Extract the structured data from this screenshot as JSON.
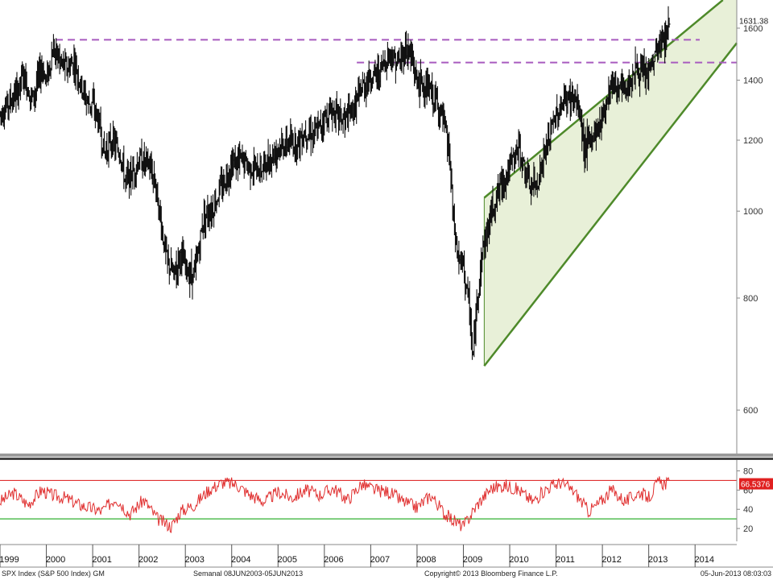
{
  "chart_data": [
    {
      "type": "line",
      "panel": "price",
      "title": "",
      "ylim": [
        540,
        1720
      ],
      "y_scale": "log",
      "y_ticks": [
        600,
        800,
        1000,
        1200,
        1400,
        1600
      ],
      "x_range": [
        1999.0,
        2014.9
      ],
      "last_value_label": "1631.38",
      "last_value": 1631.38,
      "resistance_lines": [
        {
          "from": 2000.2,
          "to": 2014.1,
          "value": 1553,
          "color": "#a85bbf",
          "style": "dashed"
        },
        {
          "from": 2006.7,
          "to": 2014.9,
          "value": 1465,
          "color": "#a85bbf",
          "style": "dashed"
        }
      ],
      "channel": {
        "fill": "#e8f0d8",
        "line_color": "#4e8a2a",
        "upper": {
          "start": [
            2009.45,
            1035
          ],
          "end": [
            2014.6,
            1720
          ]
        },
        "lower": {
          "start": [
            2009.45,
            672
          ],
          "end": [
            2014.9,
            1540
          ]
        }
      },
      "series": [
        {
          "name": "SPX Index",
          "color": "#111111",
          "x": [
            1999.0,
            1999.2,
            1999.4,
            1999.5,
            1999.7,
            1999.9,
            2000.0,
            2000.15,
            2000.3,
            2000.45,
            2000.6,
            2000.75,
            2000.9,
            2001.0,
            2001.15,
            2001.25,
            2001.4,
            2001.6,
            2001.7,
            2001.85,
            2002.0,
            2002.2,
            2002.35,
            2002.5,
            2002.6,
            2002.75,
            2002.9,
            2003.0,
            2003.2,
            2003.4,
            2003.6,
            2003.8,
            2004.0,
            2004.2,
            2004.4,
            2004.6,
            2004.8,
            2005.0,
            2005.2,
            2005.4,
            2005.6,
            2005.8,
            2006.0,
            2006.2,
            2006.4,
            2006.6,
            2006.8,
            2007.0,
            2007.2,
            2007.4,
            2007.6,
            2007.75,
            2007.85,
            2008.0,
            2008.2,
            2008.4,
            2008.55,
            2008.7,
            2008.8,
            2008.9,
            2009.0,
            2009.15,
            2009.2,
            2009.3,
            2009.4,
            2009.5,
            2009.6,
            2009.8,
            2010.0,
            2010.2,
            2010.3,
            2010.45,
            2010.6,
            2010.8,
            2011.0,
            2011.2,
            2011.35,
            2011.5,
            2011.6,
            2011.75,
            2011.9,
            2012.0,
            2012.2,
            2012.35,
            2012.5,
            2012.7,
            2012.85,
            2013.0,
            2013.2,
            2013.35,
            2013.45
          ],
          "values": [
            1285,
            1320,
            1365,
            1420,
            1330,
            1450,
            1400,
            1520,
            1470,
            1440,
            1470,
            1380,
            1320,
            1320,
            1240,
            1160,
            1200,
            1160,
            1080,
            1100,
            1140,
            1130,
            1080,
            950,
            880,
            850,
            900,
            860,
            850,
            990,
            1010,
            1070,
            1130,
            1140,
            1120,
            1110,
            1140,
            1180,
            1190,
            1190,
            1230,
            1220,
            1270,
            1300,
            1260,
            1290,
            1370,
            1410,
            1430,
            1500,
            1460,
            1520,
            1500,
            1400,
            1370,
            1330,
            1270,
            1150,
            950,
            880,
            870,
            760,
            680,
            800,
            900,
            940,
            1000,
            1070,
            1115,
            1180,
            1120,
            1060,
            1080,
            1180,
            1280,
            1330,
            1340,
            1300,
            1180,
            1200,
            1240,
            1280,
            1400,
            1370,
            1360,
            1440,
            1420,
            1420,
            1520,
            1560,
            1640
          ]
        }
      ]
    },
    {
      "type": "line",
      "panel": "rsi",
      "title": "",
      "ylim": [
        10,
        88
      ],
      "y_ticks": [
        20,
        40,
        60,
        80
      ],
      "overbought": 70,
      "oversold": 30,
      "last_value_label": "66.5376",
      "last_value": 66.5376,
      "series": [
        {
          "name": "RSI",
          "color": "#e03030",
          "x": [
            1999.0,
            1999.3,
            1999.6,
            1999.9,
            2000.1,
            2000.4,
            2000.7,
            2000.9,
            2001.2,
            2001.5,
            2001.8,
            2002.1,
            2002.4,
            2002.7,
            2002.9,
            2003.2,
            2003.5,
            2003.8,
            2004.1,
            2004.4,
            2004.7,
            2005.0,
            2005.3,
            2005.6,
            2005.9,
            2006.2,
            2006.5,
            2006.8,
            2007.1,
            2007.4,
            2007.7,
            2008.0,
            2008.3,
            2008.6,
            2008.8,
            2009.0,
            2009.3,
            2009.6,
            2009.9,
            2010.2,
            2010.5,
            2010.8,
            2011.1,
            2011.4,
            2011.7,
            2011.9,
            2012.2,
            2012.5,
            2012.8,
            2013.0,
            2013.2,
            2013.45
          ],
          "values": [
            48,
            57,
            45,
            60,
            55,
            52,
            45,
            42,
            38,
            52,
            35,
            50,
            30,
            22,
            38,
            45,
            60,
            68,
            66,
            55,
            48,
            58,
            52,
            60,
            55,
            62,
            50,
            66,
            60,
            58,
            48,
            42,
            55,
            35,
            28,
            22,
            45,
            62,
            65,
            60,
            48,
            62,
            68,
            58,
            38,
            45,
            60,
            48,
            58,
            52,
            68,
            66.54
          ]
        }
      ]
    }
  ],
  "x_axis": {
    "labels": [
      {
        "text": "1999",
        "x": 1999.2
      },
      {
        "text": "2000",
        "x": 2000.2
      },
      {
        "text": "2001",
        "x": 2001.2
      },
      {
        "text": "2002",
        "x": 2002.2
      },
      {
        "text": "2003",
        "x": 2003.2
      },
      {
        "text": "2004",
        "x": 2004.2
      },
      {
        "text": "2005",
        "x": 2005.2
      },
      {
        "text": "2006",
        "x": 2006.2
      },
      {
        "text": "2007",
        "x": 2007.2
      },
      {
        "text": "2008",
        "x": 2008.2
      },
      {
        "text": "2009",
        "x": 2009.2
      },
      {
        "text": "2010",
        "x": 2010.2
      },
      {
        "text": "2011",
        "x": 2011.2
      },
      {
        "text": "2012",
        "x": 2012.2
      },
      {
        "text": "2013",
        "x": 2013.2
      },
      {
        "text": "2014",
        "x": 2014.2
      }
    ]
  },
  "footer": {
    "left": "SPX Index (S&P 500 Index) GM",
    "center": "Semanal 08JUN2003-05JUN2013",
    "copyright": "Copyright© 2013 Bloomberg Finance L.P.",
    "right": "05-Jun-2013 08:03:03"
  }
}
